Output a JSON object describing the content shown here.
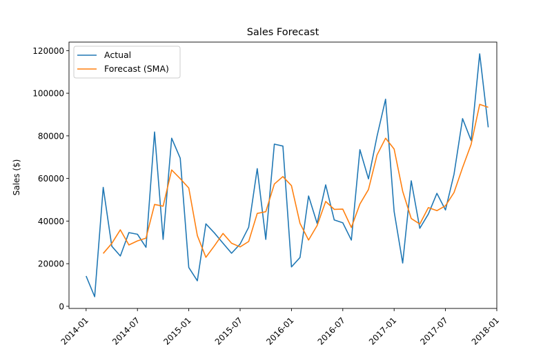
{
  "chart_data": {
    "type": "line",
    "title": "Sales Forecast",
    "xlabel": "",
    "ylabel": "Sales ($)",
    "xlim": [
      "2013-11-01",
      "2018-01-01"
    ],
    "ylim": [
      -1000,
      124000
    ],
    "x_ticks": [
      "2014-01",
      "2014-07",
      "2015-01",
      "2015-07",
      "2016-01",
      "2016-07",
      "2017-01",
      "2017-07",
      "2018-01"
    ],
    "y_ticks": [
      "0",
      "20000",
      "40000",
      "60000",
      "80000",
      "100000",
      "120000"
    ],
    "legend_position": "upper-left",
    "series": [
      {
        "name": "Actual",
        "color": "#1f77b4",
        "x": [
          "2014-01",
          "2014-02",
          "2014-03",
          "2014-04",
          "2014-05",
          "2014-06",
          "2014-07",
          "2014-08",
          "2014-09",
          "2014-10",
          "2014-11",
          "2014-12",
          "2015-01",
          "2015-02",
          "2015-03",
          "2015-04",
          "2015-05",
          "2015-06",
          "2015-07",
          "2015-08",
          "2015-09",
          "2015-10",
          "2015-11",
          "2015-12",
          "2016-01",
          "2016-02",
          "2016-03",
          "2016-04",
          "2016-05",
          "2016-06",
          "2016-07",
          "2016-08",
          "2016-09",
          "2016-10",
          "2016-11",
          "2016-12",
          "2017-01",
          "2017-02",
          "2017-03",
          "2017-04",
          "2017-05",
          "2017-06",
          "2017-07",
          "2017-08",
          "2017-09",
          "2017-10",
          "2017-11",
          "2017-12"
        ],
        "values": [
          14200,
          4500,
          55800,
          28200,
          23600,
          34600,
          33800,
          27700,
          81800,
          31400,
          78900,
          69500,
          18200,
          12000,
          38700,
          34400,
          29600,
          24900,
          29200,
          37100,
          64600,
          31400,
          76100,
          75200,
          18500,
          22900,
          51800,
          38900,
          57000,
          40500,
          39200,
          31100,
          73500,
          59800,
          79800,
          97200,
          44500,
          20300,
          58900,
          36600,
          43300,
          53000,
          45200,
          62000,
          88100,
          77800,
          118500,
          84000
        ]
      },
      {
        "name": "Forecast (SMA)",
        "color": "#ff7f0e",
        "x": [
          "2014-03",
          "2014-04",
          "2014-05",
          "2014-06",
          "2014-07",
          "2014-08",
          "2014-09",
          "2014-10",
          "2014-11",
          "2014-12",
          "2015-01",
          "2015-02",
          "2015-03",
          "2015-04",
          "2015-05",
          "2015-06",
          "2015-07",
          "2015-08",
          "2015-09",
          "2015-10",
          "2015-11",
          "2015-12",
          "2016-01",
          "2016-02",
          "2016-03",
          "2016-04",
          "2016-05",
          "2016-06",
          "2016-07",
          "2016-08",
          "2016-09",
          "2016-10",
          "2016-11",
          "2016-12",
          "2017-01",
          "2017-02",
          "2017-03",
          "2017-04",
          "2017-05",
          "2017-06",
          "2017-07",
          "2017-08",
          "2017-09",
          "2017-10",
          "2017-11",
          "2017-12"
        ],
        "values": [
          24800,
          29500,
          35900,
          28800,
          30700,
          32000,
          47800,
          47000,
          64000,
          59900,
          55500,
          33200,
          23000,
          28400,
          34200,
          29600,
          27900,
          30400,
          43600,
          44400,
          57400,
          60900,
          56600,
          38900,
          31100,
          37900,
          49200,
          45500,
          45600,
          37000,
          48000,
          54800,
          71000,
          78900,
          73800,
          54000,
          41200,
          38600,
          46300,
          44900,
          47200,
          53400,
          65100,
          76000,
          94800,
          93400
        ]
      }
    ]
  }
}
